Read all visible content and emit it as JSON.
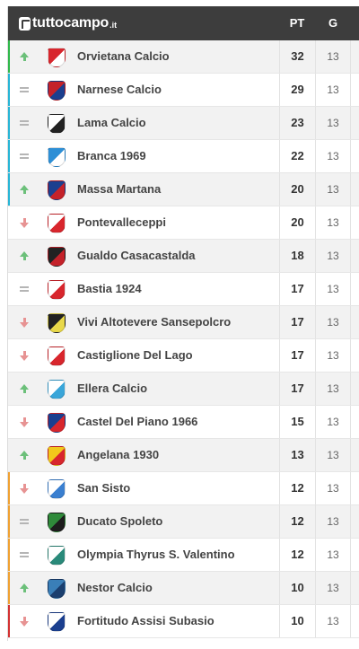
{
  "brand": {
    "name": "tuttocampo",
    "tld": ".it"
  },
  "columns": {
    "points": "PT",
    "games": "G"
  },
  "rows": [
    {
      "team": "Orvietana Calcio",
      "points": "32",
      "games": "13",
      "trend": "up",
      "zone_color": "#2eb84a",
      "crest_colors": [
        "#d8262d",
        "#ffffff"
      ]
    },
    {
      "team": "Narnese Calcio",
      "points": "29",
      "games": "13",
      "trend": "same",
      "zone_color": "#26b5d6",
      "crest_colors": [
        "#c4222a",
        "#1b3f8f"
      ]
    },
    {
      "team": "Lama Calcio",
      "points": "23",
      "games": "13",
      "trend": "same",
      "zone_color": "#26b5d6",
      "crest_colors": [
        "#ffffff",
        "#222222"
      ]
    },
    {
      "team": "Branca 1969",
      "points": "22",
      "games": "13",
      "trend": "same",
      "zone_color": "#26b5d6",
      "crest_colors": [
        "#2d8fd6",
        "#ffffff"
      ]
    },
    {
      "team": "Massa Martana",
      "points": "20",
      "games": "13",
      "trend": "up",
      "zone_color": "#26b5d6",
      "crest_colors": [
        "#1c3f8f",
        "#c4222a"
      ]
    },
    {
      "team": "Pontevalleceppi",
      "points": "20",
      "games": "13",
      "trend": "down",
      "zone_color": "",
      "crest_colors": [
        "#ffffff",
        "#d8262d"
      ]
    },
    {
      "team": "Gualdo Casacastalda",
      "points": "18",
      "games": "13",
      "trend": "up",
      "zone_color": "",
      "crest_colors": [
        "#222222",
        "#c4222a"
      ]
    },
    {
      "team": "Bastia 1924",
      "points": "17",
      "games": "13",
      "trend": "same",
      "zone_color": "",
      "crest_colors": [
        "#ffffff",
        "#d8262d"
      ]
    },
    {
      "team": "Vivi Altotevere Sansepolcro",
      "points": "17",
      "games": "13",
      "trend": "down",
      "zone_color": "",
      "crest_colors": [
        "#222222",
        "#e8d84a"
      ]
    },
    {
      "team": "Castiglione Del Lago",
      "points": "17",
      "games": "13",
      "trend": "down",
      "zone_color": "",
      "crest_colors": [
        "#ffffff",
        "#d8262d"
      ]
    },
    {
      "team": "Ellera Calcio",
      "points": "17",
      "games": "13",
      "trend": "up",
      "zone_color": "",
      "crest_colors": [
        "#ffffff",
        "#3aa6d9"
      ]
    },
    {
      "team": "Castel Del Piano 1966",
      "points": "15",
      "games": "13",
      "trend": "down",
      "zone_color": "",
      "crest_colors": [
        "#1b3f8f",
        "#d8262d"
      ]
    },
    {
      "team": "Angelana 1930",
      "points": "13",
      "games": "13",
      "trend": "up",
      "zone_color": "",
      "crest_colors": [
        "#f2c81b",
        "#d8262d"
      ]
    },
    {
      "team": "San Sisto",
      "points": "12",
      "games": "13",
      "trend": "down",
      "zone_color": "#f0a030",
      "crest_colors": [
        "#ffffff",
        "#3a7fd0"
      ]
    },
    {
      "team": "Ducato Spoleto",
      "points": "12",
      "games": "13",
      "trend": "same",
      "zone_color": "#f0a030",
      "crest_colors": [
        "#2f8a3a",
        "#1d1d1d"
      ]
    },
    {
      "team": "Olympia Thyrus S. Valentino",
      "points": "12",
      "games": "13",
      "trend": "same",
      "zone_color": "#f0a030",
      "crest_colors": [
        "#ffffff",
        "#2a8a7a"
      ]
    },
    {
      "team": "Nestor Calcio",
      "points": "10",
      "games": "13",
      "trend": "up",
      "zone_color": "#f0a030",
      "crest_colors": [
        "#3a7fb8",
        "#1b3f6f"
      ]
    },
    {
      "team": "Fortitudo Assisi Subasio",
      "points": "10",
      "games": "13",
      "trend": "down",
      "zone_color": "#d33030",
      "crest_colors": [
        "#ffffff",
        "#1b3f8f"
      ]
    }
  ]
}
